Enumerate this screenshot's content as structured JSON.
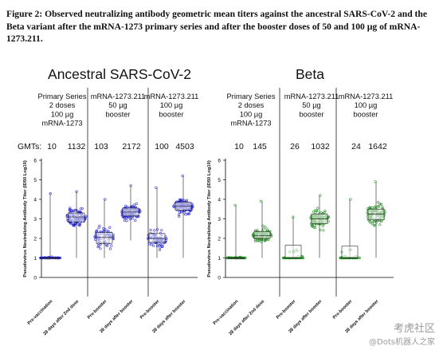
{
  "caption": "Figure 2: Observed neutralizing antibody geometric mean titers against the ancestral SARS-CoV-2 and the Beta variant after the mRNA-1273 primary series and after the booster doses of 50 and 100 µg of mRNA-1273.211.",
  "colors": {
    "ancestral": "#1a1acc",
    "beta": "#1e8c1e",
    "ink": "#000000"
  },
  "chart_data": [
    {
      "type": "box_scatter",
      "panel_title": "Ancestral SARS-CoV-2",
      "ylabel": "Pseudovirus Neutralizing Antibody Titer (ID50 Log10)",
      "ylim": [
        0,
        6
      ],
      "yticks": [
        "0",
        "1",
        "2",
        "3",
        "4",
        "5",
        "6"
      ],
      "gmt_label": "GMTs:",
      "groups": [
        {
          "header": [
            "Primary Series",
            "2 doses",
            "100 µg",
            "mRNA-1273"
          ],
          "categories": [
            "Pre-vaccination",
            "28 days after 2nd dose"
          ],
          "gmt": [
            10,
            1132
          ],
          "box": [
            {
              "q1": 1.0,
              "median": 1.0,
              "q3": 1.0,
              "min": 1.0,
              "max": 4.3
            },
            {
              "q1": 2.85,
              "median": 3.1,
              "q3": 3.3,
              "min": 1.0,
              "max": 4.4
            }
          ]
        },
        {
          "header": [
            "mRNA-1273.211",
            "50 µg",
            "booster"
          ],
          "categories": [
            "Pre-booster",
            "28 days after booster"
          ],
          "gmt": [
            103,
            2172
          ],
          "box": [
            {
              "q1": 1.75,
              "median": 2.05,
              "q3": 2.3,
              "min": 1.0,
              "max": 4.0
            },
            {
              "q1": 3.15,
              "median": 3.35,
              "q3": 3.55,
              "min": 1.9,
              "max": 4.7
            }
          ]
        },
        {
          "header": [
            "mRNA-1273.211",
            "100 µg",
            "booster"
          ],
          "categories": [
            "Pre-booster",
            "28 days after booster"
          ],
          "gmt": [
            100,
            4503
          ],
          "box": [
            {
              "q1": 1.8,
              "median": 2.0,
              "q3": 2.25,
              "min": 1.0,
              "max": 4.6
            },
            {
              "q1": 3.45,
              "median": 3.65,
              "q3": 3.85,
              "min": 1.0,
              "max": 5.2
            }
          ]
        }
      ]
    },
    {
      "type": "box_scatter",
      "panel_title": "Beta",
      "ylabel": "Pseudovirus Neutralizing Antibody Titer (ID50 Log10)",
      "ylim": [
        0,
        6
      ],
      "yticks": [
        "0",
        "1",
        "2",
        "3",
        "4",
        "5",
        "6"
      ],
      "groups": [
        {
          "header": [
            "Primary Series",
            "2 doses",
            "100 µg",
            "mRNA-1273"
          ],
          "categories": [
            "Pre-vaccination",
            "28 days after 2nd dose"
          ],
          "gmt": [
            10,
            145
          ],
          "box": [
            {
              "q1": 1.0,
              "median": 1.0,
              "q3": 1.0,
              "min": 1.0,
              "max": 3.7
            },
            {
              "q1": 2.0,
              "median": 2.15,
              "q3": 2.35,
              "min": 1.0,
              "max": 3.9
            }
          ]
        },
        {
          "header": [
            "mRNA-1273.211",
            "50 µg",
            "booster"
          ],
          "categories": [
            "Pre-booster",
            "28 days after booster"
          ],
          "gmt": [
            26,
            1032
          ],
          "box": [
            {
              "q1": 1.0,
              "median": 1.0,
              "q3": 1.65,
              "min": 1.0,
              "max": 3.1
            },
            {
              "q1": 2.75,
              "median": 3.0,
              "q3": 3.25,
              "min": 1.0,
              "max": 4.2
            }
          ]
        },
        {
          "header": [
            "mRNA-1273.211",
            "100 µg",
            "booster"
          ],
          "categories": [
            "Pre-booster",
            "28 days after booster"
          ],
          "gmt": [
            24,
            1642
          ],
          "box": [
            {
              "q1": 1.0,
              "median": 1.0,
              "q3": 1.6,
              "min": 1.0,
              "max": 4.0
            },
            {
              "q1": 2.95,
              "median": 3.25,
              "q3": 3.5,
              "min": 1.0,
              "max": 4.9
            }
          ]
        }
      ]
    }
  ],
  "watermark": {
    "line1": "考虎社区",
    "line2": "@Dots机器人之家"
  }
}
